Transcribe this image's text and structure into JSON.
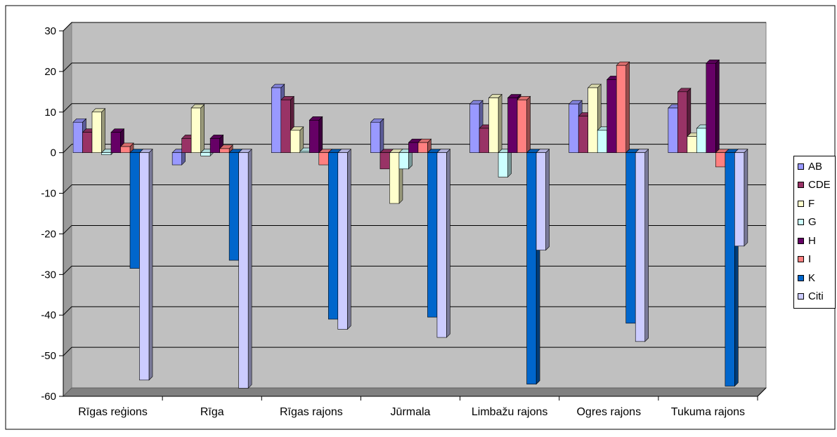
{
  "chart_data": {
    "type": "bar",
    "title": "",
    "xlabel": "",
    "ylabel": "",
    "ylim": [
      -60,
      30
    ],
    "yticks": [
      30,
      20,
      10,
      0,
      -10,
      -20,
      -30,
      -40,
      -50,
      -60
    ],
    "grid": true,
    "legend_position": "right",
    "categories": [
      "Rīgas reģions",
      "Rīga",
      "Rīgas rajons",
      "Jūrmala",
      "Limbažu rajons",
      "Ogres rajons",
      "Tukuma rajons"
    ],
    "series": [
      {
        "name": "AB",
        "color": "#9999FF",
        "values": [
          7.5,
          -3,
          16,
          7.5,
          12,
          12,
          11
        ]
      },
      {
        "name": "CDE",
        "color": "#993366",
        "values": [
          5,
          3.5,
          13,
          -4,
          6,
          9,
          15
        ]
      },
      {
        "name": "F",
        "color": "#FFFFCC",
        "values": [
          10,
          11,
          5.5,
          -12.5,
          13.5,
          16,
          4
        ]
      },
      {
        "name": "G",
        "color": "#CCFFFF",
        "values": [
          -0.5,
          -0.8,
          0.3,
          -4,
          -6,
          5.5,
          6
        ]
      },
      {
        "name": "H",
        "color": "#660066",
        "values": [
          5,
          3.5,
          8,
          2.5,
          13.5,
          18,
          22
        ]
      },
      {
        "name": "I",
        "color": "#FF8080",
        "values": [
          1.5,
          1,
          -3,
          2.5,
          13,
          21.5,
          -3.5
        ]
      },
      {
        "name": "K",
        "color": "#0066CC",
        "values": [
          -28.5,
          -26.5,
          -41,
          -40.5,
          -57,
          -42,
          -57.5
        ]
      },
      {
        "name": "Citi",
        "color": "#CCCCFF",
        "values": [
          -56,
          -58,
          -43.5,
          -45.5,
          -24,
          -46.5,
          -23
        ]
      }
    ]
  }
}
